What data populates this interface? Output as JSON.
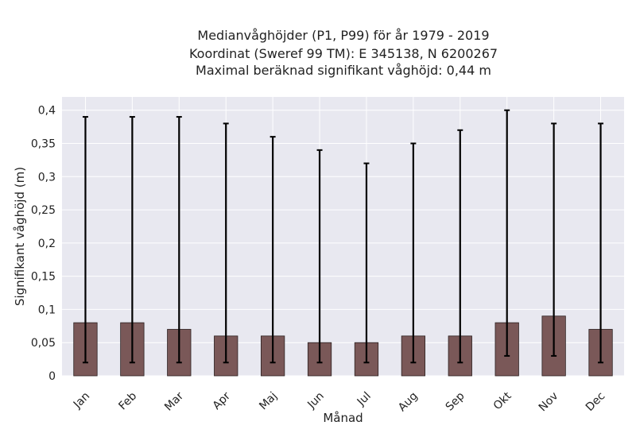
{
  "chart_data": {
    "type": "bar",
    "title_lines": [
      "Medianvåghöjder (P1, P99) för år 1979 - 2019",
      "Koordinat (Sweref 99 TM): E 345138, N 6200267",
      "Maximal beräknad signifikant våghöjd: 0,44 m"
    ],
    "xlabel": "Månad",
    "ylabel": "Signifikant våghöjd (m)",
    "categories": [
      "Jan",
      "Feb",
      "Mar",
      "Apr",
      "Maj",
      "Jun",
      "Jul",
      "Aug",
      "Sep",
      "Okt",
      "Nov",
      "Dec"
    ],
    "values": [
      0.08,
      0.08,
      0.07,
      0.06,
      0.06,
      0.05,
      0.05,
      0.06,
      0.06,
      0.08,
      0.09,
      0.07
    ],
    "p1": [
      0.02,
      0.02,
      0.02,
      0.02,
      0.02,
      0.02,
      0.02,
      0.02,
      0.02,
      0.03,
      0.03,
      0.02
    ],
    "p99": [
      0.39,
      0.39,
      0.39,
      0.38,
      0.36,
      0.34,
      0.32,
      0.35,
      0.37,
      0.4,
      0.38,
      0.38
    ],
    "yticks": [
      "0",
      "0,05",
      "0,1",
      "0,15",
      "0,2",
      "0,25",
      "0,3",
      "0,35",
      "0,4"
    ],
    "ytick_values": [
      0,
      0.05,
      0.1,
      0.15,
      0.2,
      0.25,
      0.3,
      0.35,
      0.4
    ],
    "ylim": [
      0,
      0.42
    ],
    "grid": true,
    "colors": {
      "bar": "#7a5858",
      "bar_edge": "#2b2020",
      "errorbar": "#000000",
      "plot_bg": "#e8e8f0",
      "grid": "#ffffff"
    }
  }
}
